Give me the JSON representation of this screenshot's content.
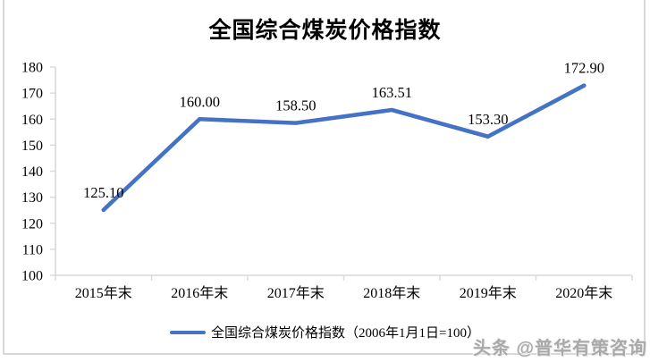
{
  "title": "全国综合煤炭价格指数",
  "watermark": "头条 @普华有策咨询",
  "colors": {
    "line": "#4472c4",
    "axis": "#d9d9d9",
    "frame": "#d9d9d9",
    "text": "#000000",
    "watermark": "#a9a9a9"
  },
  "legend": {
    "label": "全国综合煤炭价格指数（2006年1月1日=100）"
  },
  "chart_data": {
    "type": "line",
    "title": "全国综合煤炭价格指数",
    "categories": [
      "2015年末",
      "2016年末",
      "2017年末",
      "2018年末",
      "2019年末",
      "2020年末"
    ],
    "series": [
      {
        "name": "全国综合煤炭价格指数（2006年1月1日=100）",
        "values": [
          125.1,
          160.0,
          158.5,
          163.51,
          153.3,
          172.9
        ]
      }
    ],
    "data_labels": [
      "125.10",
      "160.00",
      "158.50",
      "163.51",
      "153.30",
      "172.90"
    ],
    "xlabel": "",
    "ylabel": "",
    "ylim": [
      100,
      180
    ],
    "yticks": [
      100,
      110,
      120,
      130,
      140,
      150,
      160,
      170,
      180
    ],
    "grid": false,
    "legend_position": "bottom"
  }
}
